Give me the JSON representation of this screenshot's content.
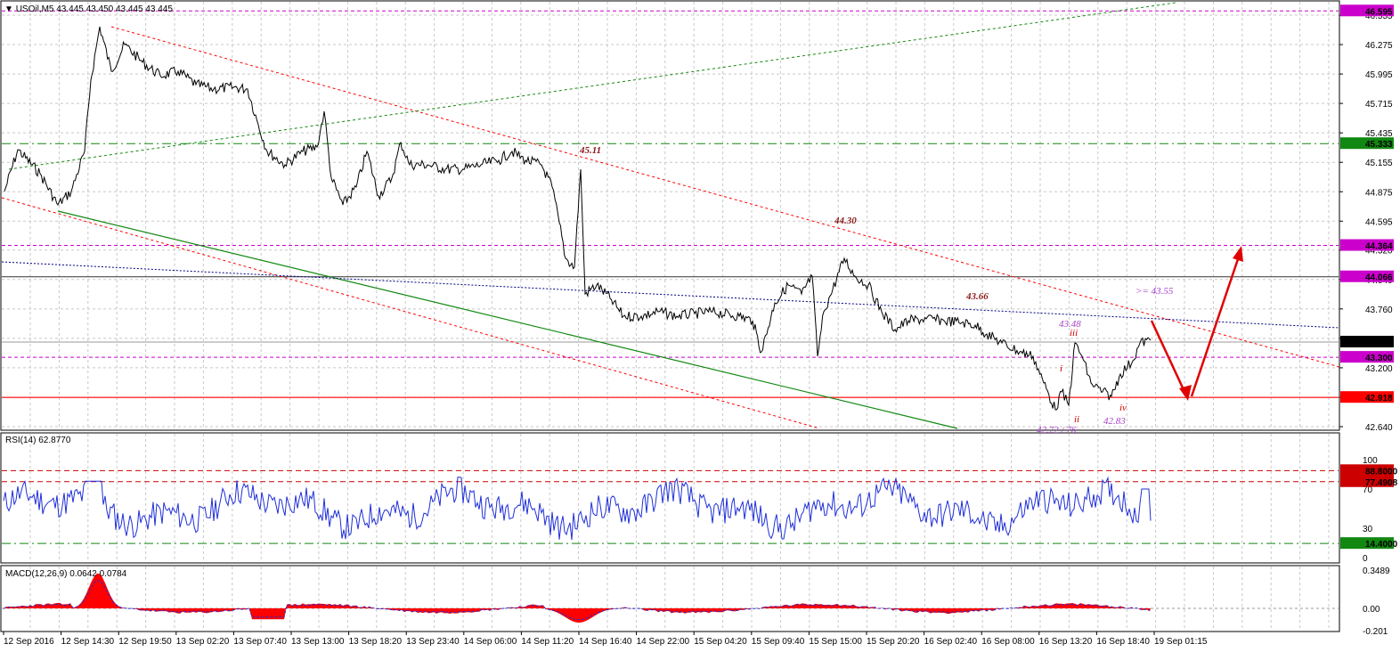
{
  "window": {
    "symbol_header": "USOil,M5  43.445 43.450 43.445 43.445"
  },
  "colors": {
    "candles": "#000000",
    "rsi_line": "#1f2fd8",
    "macd_hist": "#ff0000",
    "macd_signal": "#1f2fd8",
    "level_magenta": "#cc00cc",
    "level_green": "#118811",
    "level_red": "#ff0000",
    "channel_red": "#ff0000",
    "ma_navy": "#000080",
    "arrow": "#e00000"
  },
  "price_axis": {
    "ticks": [
      "46.555",
      "46.275",
      "45.995",
      "45.715",
      "45.435",
      "45.155",
      "44.875",
      "44.595",
      "44.320",
      "44.040",
      "43.760",
      "43.480",
      "43.200",
      "42.920",
      "42.640"
    ],
    "tags": [
      {
        "value": "46.595",
        "color": "#cc00cc"
      },
      {
        "value": "45.333",
        "color": "#118811"
      },
      {
        "value": "44.364",
        "color": "#cc00cc"
      },
      {
        "value": "44.066",
        "color": "#cc00cc"
      },
      {
        "value": "43.445",
        "color": "#000000"
      },
      {
        "value": "43.300",
        "color": "#cc00cc"
      },
      {
        "value": "42.918",
        "color": "#ff0000"
      }
    ]
  },
  "annotations": {
    "a1": "45.11",
    "a2": "44.30",
    "a3": "43.66",
    "a4": "43.48",
    "a5": ">= 43.55",
    "w_i": "i",
    "w_ii": "ii",
    "w_iii": "iii",
    "w_iv": "iv",
    "low1": "42.72 / 76",
    "low2": "42.83"
  },
  "rsi": {
    "header": "RSI(14) 62.8770",
    "ticks": [
      "100",
      "70",
      "30",
      "0"
    ],
    "tags": [
      {
        "value": "88.8000",
        "color": "#cc0000"
      },
      {
        "value": "77.4908",
        "color": "#cc0000"
      },
      {
        "value": "14.4000",
        "color": "#118811"
      }
    ]
  },
  "macd": {
    "header": "MACD(12,26,9) 0.0642 0.0784",
    "ticks": [
      "0.3489",
      "0.00",
      "-0.201"
    ]
  },
  "time_axis": [
    "12 Sep 2016",
    "12 Sep 14:30",
    "12 Sep 19:50",
    "13 Sep 02:20",
    "13 Sep 07:40",
    "13 Sep 13:00",
    "13 Sep 18:20",
    "13 Sep 23:40",
    "14 Sep 06:00",
    "14 Sep 11:20",
    "14 Sep 16:40",
    "14 Sep 22:00",
    "15 Sep 04:20",
    "15 Sep 09:40",
    "15 Sep 15:00",
    "15 Sep 20:20",
    "16 Sep 02:40",
    "16 Sep 08:00",
    "16 Sep 13:20",
    "16 Sep 18:40",
    "19 Sep 01:15"
  ]
}
